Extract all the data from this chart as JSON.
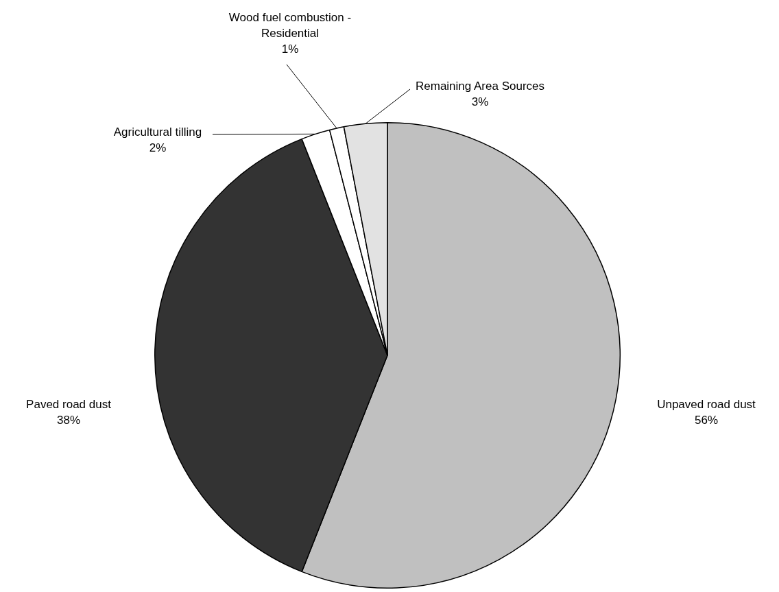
{
  "chart_data": {
    "type": "pie",
    "categories": [
      "Unpaved road dust",
      "Paved road dust",
      "Agricultural tilling",
      "Wood fuel combustion - Residential",
      "Remaining Area Sources"
    ],
    "values": [
      56,
      38,
      2,
      1,
      3
    ],
    "colors": [
      "#c0c0c0",
      "#333333",
      "#ffffff",
      "#ffffff",
      "#e2e2e2"
    ],
    "value_labels": [
      "56%",
      "38%",
      "2%",
      "1%",
      "3%"
    ],
    "legend": false
  }
}
